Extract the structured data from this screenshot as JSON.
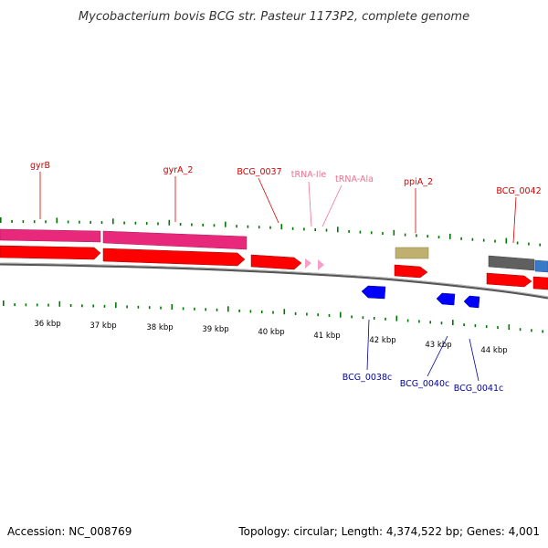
{
  "title": "Mycobacterium bovis BCG str. Pasteur 1173P2, complete genome",
  "accession": "Accession: NC_008769",
  "topology": "Topology: circular; Length: 4,374,522 bp; Genes: 4,001",
  "colors": {
    "forward_label": "#d40000",
    "reverse_label": "#0000a0",
    "trna_label": "#f07090",
    "cds_forward": "#ff0000",
    "cds_reverse": "#0000ff",
    "gyrase_highlight": "#e8287a",
    "trna": "#f5a0c8",
    "ppia_box": "#bfb070",
    "gray_box": "#606060",
    "blue_box": "#3a78c8",
    "tick": "#007700",
    "backbone": "#888888"
  },
  "kbp_labels": [
    "36 kbp",
    "37 kbp",
    "38 kbp",
    "39 kbp",
    "40 kbp",
    "41 kbp",
    "42 kbp",
    "43 kbp",
    "44 kbp"
  ],
  "gene_labels": {
    "gyrB": "gyrB",
    "gyrA_2": "gyrA_2",
    "BCG_0037": "BCG_0037",
    "tRNA_Ile": "tRNA-Ile",
    "tRNA_Ala": "tRNA-Ala",
    "ppiA_2": "ppiA_2",
    "BCG_0042": "BCG_0042",
    "BCG_0038c": "BCG_0038c",
    "BCG_0040c": "BCG_0040c",
    "BCG_0041c": "BCG_0041c"
  }
}
